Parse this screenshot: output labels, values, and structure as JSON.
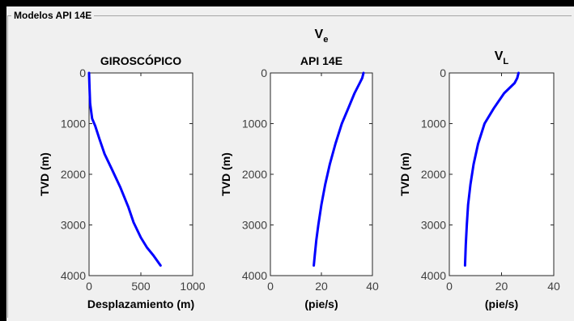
{
  "groupbox": {
    "title": "Modelos API 14E"
  },
  "chart_data": [
    {
      "type": "line",
      "title": "GIROSCÓPICO",
      "xlabel": "Desplazamiento (m)",
      "ylabel": "TVD (m)",
      "xlim": [
        0,
        1000
      ],
      "ylim": [
        0,
        4000
      ],
      "y_reversed": true,
      "xticks": [
        "0",
        "500",
        "1000"
      ],
      "yticks": [
        "0",
        "1000",
        "2000",
        "3000",
        "4000"
      ],
      "grid": false,
      "series": [
        {
          "color": "#0000ff",
          "x": [
            0,
            5,
            10,
            30,
            60,
            100,
            150,
            220,
            300,
            380,
            430,
            500,
            560,
            620,
            690
          ],
          "y": [
            0,
            300,
            600,
            900,
            1050,
            1300,
            1600,
            1900,
            2250,
            2650,
            2950,
            3250,
            3450,
            3600,
            3800
          ]
        }
      ]
    },
    {
      "type": "line",
      "title": "API 14E",
      "supertitle": {
        "main": "V",
        "sub": "e"
      },
      "xlabel": "(pie/s)",
      "ylabel": "TVD (m)",
      "xlim": [
        0,
        40
      ],
      "ylim": [
        0,
        4000
      ],
      "y_reversed": true,
      "xticks": [
        "0",
        "20",
        "40"
      ],
      "yticks": [
        "0",
        "1000",
        "2000",
        "3000",
        "4000"
      ],
      "grid": false,
      "series": [
        {
          "color": "#0000ff",
          "x": [
            36.5,
            36,
            35,
            33,
            30.5,
            28,
            25.5,
            23.3,
            21.5,
            20,
            18.8,
            18,
            17.4,
            17
          ],
          "y": [
            0,
            100,
            200,
            400,
            700,
            1000,
            1400,
            1800,
            2200,
            2600,
            3000,
            3300,
            3600,
            3800
          ]
        }
      ]
    },
    {
      "type": "line",
      "title": {
        "main": "V",
        "sub": "L"
      },
      "xlabel": "(pie/s)",
      "ylabel": "TVD (m)",
      "xlim": [
        0,
        40
      ],
      "ylim": [
        0,
        4000
      ],
      "y_reversed": true,
      "xticks": [
        "0",
        "20",
        "40"
      ],
      "yticks": [
        "0",
        "1000",
        "2000",
        "3000",
        "4000"
      ],
      "grid": false,
      "series": [
        {
          "color": "#0000ff",
          "x": [
            26.5,
            26,
            25,
            21,
            17,
            13.5,
            11,
            9.3,
            8.1,
            7.2,
            6.7,
            6.3,
            6
          ],
          "y": [
            0,
            100,
            200,
            400,
            700,
            1000,
            1400,
            1800,
            2200,
            2600,
            3000,
            3400,
            3800
          ]
        }
      ]
    }
  ]
}
